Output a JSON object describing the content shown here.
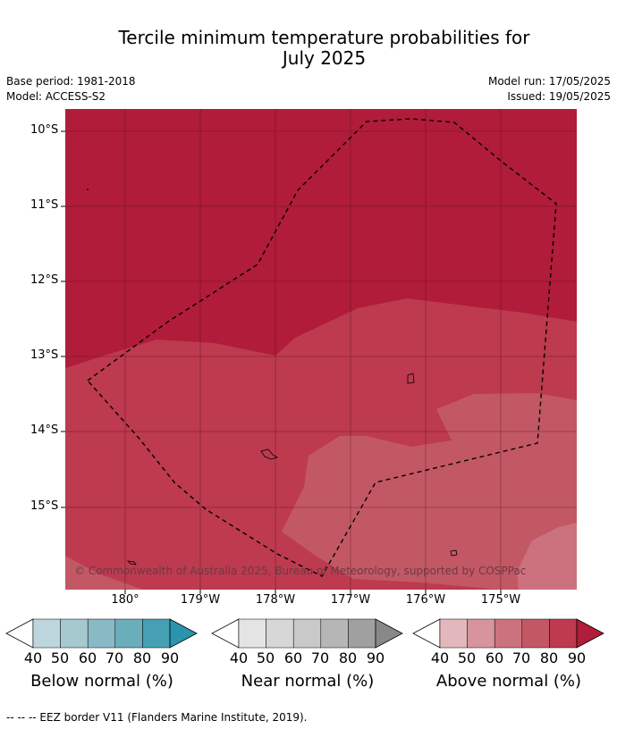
{
  "title_line1": "Tercile minimum temperature probabilities for",
  "title_line2": "July 2025",
  "meta": {
    "base_period": "Base period: 1981-2018",
    "model": "Model: ACCESS-S2",
    "model_run": "Model run: 17/05/2025",
    "issued": "Issued: 19/05/2025"
  },
  "axes": {
    "lat_labels": [
      "10°S",
      "11°S",
      "12°S",
      "13°S",
      "14°S",
      "15°S"
    ],
    "lon_labels": [
      "180°",
      "179°W",
      "178°W",
      "177°W",
      "176°W",
      "175°W"
    ]
  },
  "copyright": "© Commonwealth of Australia 2025, Bureau of Meteorology, supported by COSPPac",
  "colorbars": [
    {
      "name": "Below normal (%)",
      "ticks": [
        "40",
        "50",
        "60",
        "70",
        "80",
        "90"
      ],
      "colors": [
        "#bdd6de",
        "#a6c8cf",
        "#8ab9c6",
        "#6aaebb",
        "#45a0b3",
        "#2c93ac"
      ],
      "low_color": "#ffffff",
      "high_color": "#2c93ac"
    },
    {
      "name": "Near normal (%)",
      "ticks": [
        "40",
        "50",
        "60",
        "70",
        "80",
        "90"
      ],
      "colors": [
        "#e4e4e4",
        "#d7d7d7",
        "#c9c9c9",
        "#b6b6b6",
        "#a0a0a0",
        "#888888"
      ],
      "low_color": "#ffffff",
      "high_color": "#888888"
    },
    {
      "name": "Above normal (%)",
      "ticks": [
        "40",
        "50",
        "60",
        "70",
        "80",
        "90"
      ],
      "colors": [
        "#e3b8bd",
        "#d8949c",
        "#cc727e",
        "#c35865",
        "#bd3a4f",
        "#b01c39"
      ],
      "low_color": "#ffffff",
      "high_color": "#b01c39"
    }
  ],
  "footer": "--  --  -- EEZ border V11 (Flanders Marine Institute, 2019)."
}
